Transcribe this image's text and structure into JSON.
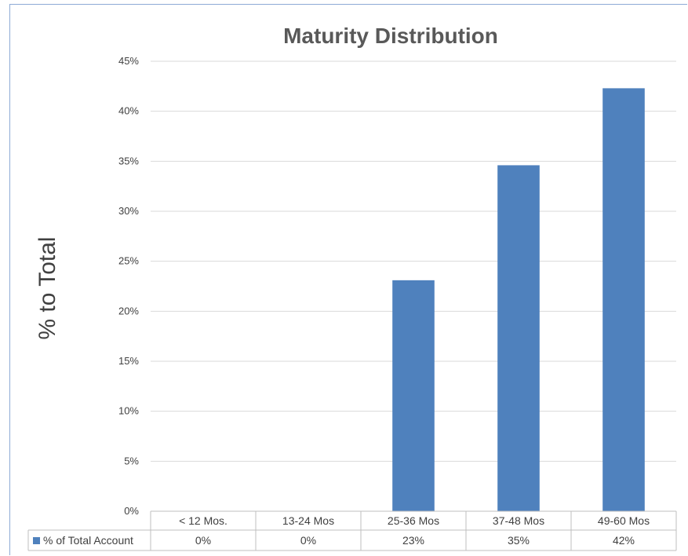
{
  "colors": {
    "bar": "#4f81bd",
    "grid": "#d9d9d9",
    "table_border": "#bfbfbf",
    "frame": "#8eaad6"
  },
  "chart_data": {
    "type": "bar",
    "title": "Maturity Distribution",
    "xlabel": "",
    "ylabel": "% to Total",
    "ylim": [
      0,
      45
    ],
    "y_ticks": [
      "0%",
      "5%",
      "10%",
      "15%",
      "20%",
      "25%",
      "30%",
      "35%",
      "40%",
      "45%"
    ],
    "grid": true,
    "categories": [
      "< 12 Mos.",
      "13-24 Mos",
      "25-36 Mos",
      "37-48 Mos",
      "49-60 Mos"
    ],
    "series": [
      {
        "name": "% of Total Account",
        "values": [
          0,
          0,
          23.1,
          34.6,
          42.3
        ],
        "labels": [
          "0%",
          "0%",
          "23%",
          "35%",
          "42%"
        ]
      }
    ],
    "legend": "data-table"
  }
}
